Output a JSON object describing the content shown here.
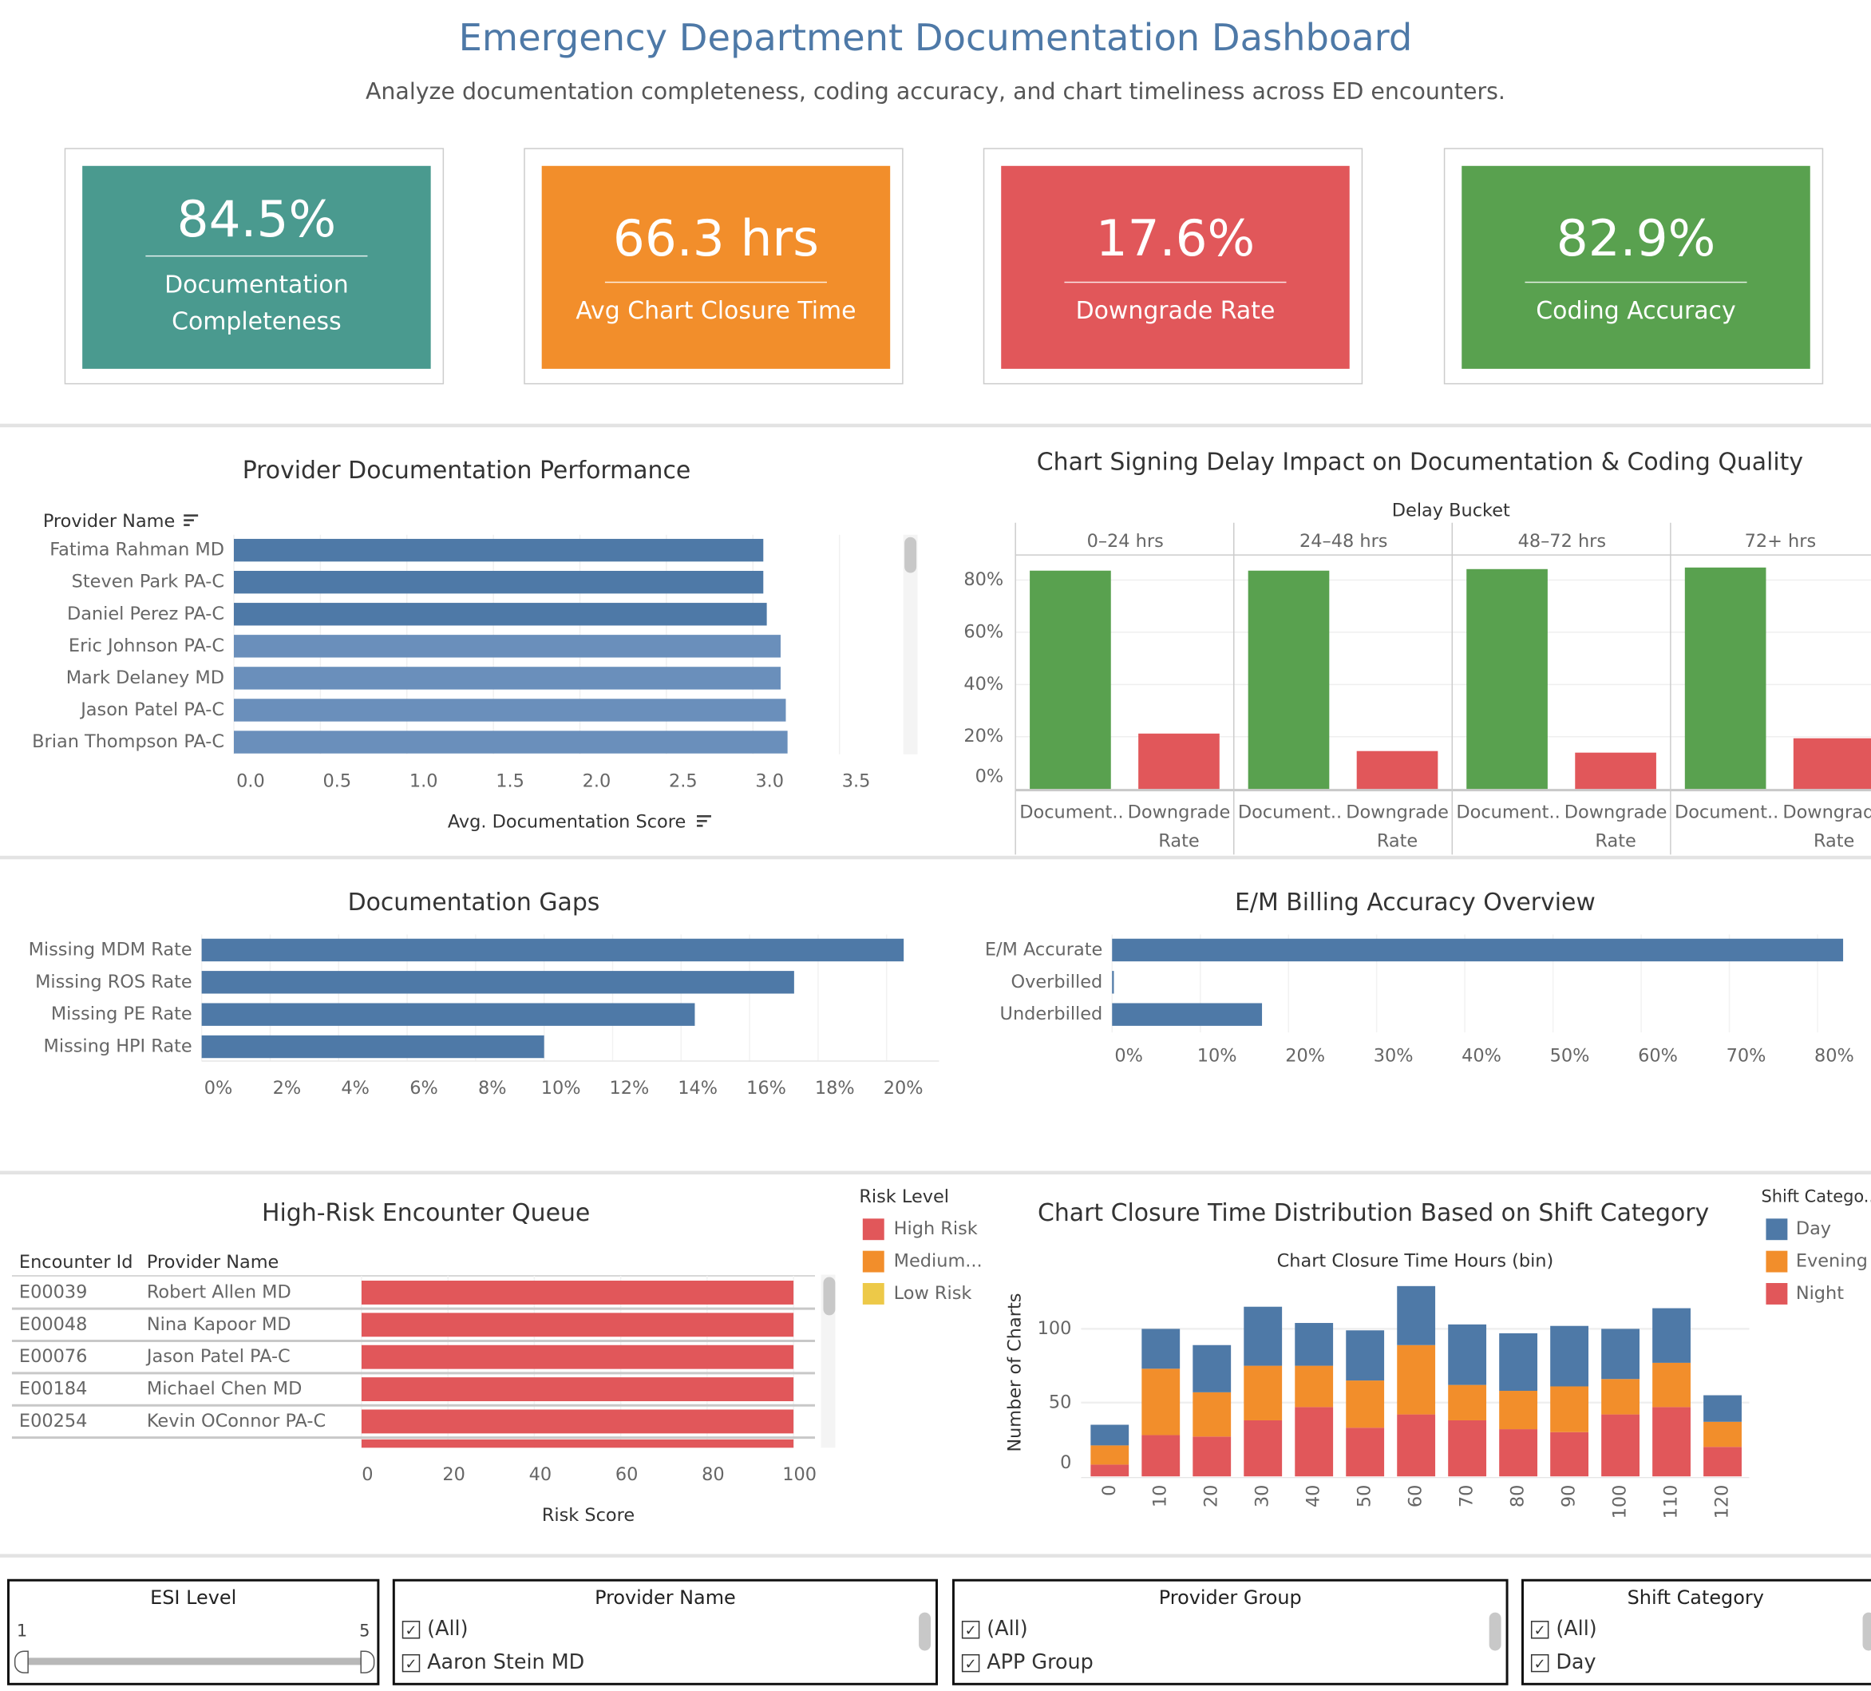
{
  "header": {
    "title": "Emergency Department Documentation Dashboard",
    "subtitle": "Analyze documentation completeness, coding accuracy, and chart timeliness across ED encounters."
  },
  "kpis": [
    {
      "value": "84.5%",
      "label": "Documentation Completeness",
      "color": "#4a9a8f"
    },
    {
      "value": "66.3 hrs",
      "label": "Avg Chart Closure Time",
      "color": "#f28e2b"
    },
    {
      "value": "17.6%",
      "label": "Downgrade Rate",
      "color": "#e1575a"
    },
    {
      "value": "82.9%",
      "label": "Coding Accuracy",
      "color": "#59a14f"
    }
  ],
  "colors": {
    "blue": "#4e79a7",
    "orange": "#f28e2b",
    "red": "#e1575a",
    "green": "#59a14f",
    "yellow": "#edc948"
  },
  "chart_data": [
    {
      "type": "bar",
      "orientation": "horizontal",
      "title": "Provider Documentation Performance",
      "row_header": "Provider Name",
      "xlabel": "Avg. Documentation Score",
      "categories": [
        "Fatima Rahman MD",
        "Steven Park PA-C",
        "Daniel Perez PA-C",
        "Eric Johnson PA-C",
        "Mark Delaney MD",
        "Jason Patel PA-C",
        "Brian Thompson PA-C"
      ],
      "values": [
        3.06,
        3.06,
        3.08,
        3.16,
        3.16,
        3.19,
        3.2
      ],
      "ticks": [
        "0.0",
        "0.5",
        "1.0",
        "1.5",
        "2.0",
        "2.5",
        "3.0",
        "3.5"
      ],
      "xlim": [
        0,
        3.5
      ]
    },
    {
      "type": "bar",
      "title": "Chart Signing Delay Impact on Documentation & Coding Quality",
      "column_header": "Delay Bucket",
      "panels": [
        "0–24 hrs",
        "24–48 hrs",
        "48–72 hrs",
        "72+ hrs"
      ],
      "measure_labels": [
        [
          "Document..",
          ""
        ],
        [
          "Downgrade",
          "Rate"
        ]
      ],
      "series": [
        {
          "measure": "Documentation Completeness",
          "values": [
            83.6,
            83.6,
            84.2,
            84.8
          ]
        },
        {
          "measure": "Downgrade Rate",
          "values": [
            21.2,
            14.5,
            13.9,
            19.4
          ]
        }
      ],
      "ticks": [
        "0%",
        "20%",
        "40%",
        "60%",
        "80%"
      ],
      "ylim": [
        0,
        80
      ]
    },
    {
      "type": "bar",
      "orientation": "horizontal",
      "title": "Documentation Gaps",
      "categories": [
        "Missing MDM Rate",
        "Missing ROS Rate",
        "Missing PE Rate",
        "Missing HPI Rate"
      ],
      "values": [
        20.5,
        17.3,
        14.4,
        10.0
      ],
      "ticks": [
        "0%",
        "2%",
        "4%",
        "6%",
        "8%",
        "10%",
        "12%",
        "14%",
        "16%",
        "18%",
        "20%"
      ],
      "xlim": [
        0,
        20
      ]
    },
    {
      "type": "bar",
      "orientation": "horizontal",
      "title": "E/M Billing Accuracy Overview",
      "categories": [
        "E/M Accurate",
        "Overbilled",
        "Underbilled"
      ],
      "values": [
        82.9,
        0.2,
        17.0
      ],
      "ticks": [
        "0%",
        "10%",
        "20%",
        "30%",
        "40%",
        "50%",
        "60%",
        "70%",
        "80%"
      ],
      "xlim": [
        0,
        80
      ]
    },
    {
      "type": "bar",
      "orientation": "horizontal",
      "title": "High-Risk Encounter Queue",
      "columns": [
        "Encounter Id",
        "Provider Name"
      ],
      "rows": [
        {
          "id": "E00039",
          "provider": "Robert Allen MD",
          "risk": 100,
          "level": "High Risk"
        },
        {
          "id": "E00048",
          "provider": "Nina Kapoor MD",
          "risk": 100,
          "level": "High Risk"
        },
        {
          "id": "E00076",
          "provider": "Jason Patel PA-C",
          "risk": 100,
          "level": "High Risk"
        },
        {
          "id": "E00184",
          "provider": "Michael Chen MD",
          "risk": 100,
          "level": "High Risk"
        },
        {
          "id": "E00254",
          "provider": "Kevin OConnor PA-C",
          "risk": 100,
          "level": "High Risk"
        }
      ],
      "xlabel": "Risk Score",
      "ticks": [
        "0",
        "20",
        "40",
        "60",
        "80",
        "100"
      ],
      "xlim": [
        0,
        100
      ],
      "legend": {
        "title": "Risk Level",
        "items": [
          {
            "label": "High Risk",
            "color": "#e1575a"
          },
          {
            "label": "Medium...",
            "color": "#f28e2b"
          },
          {
            "label": "Low Risk",
            "color": "#edc948"
          }
        ]
      }
    },
    {
      "type": "bar",
      "stacked": true,
      "title": "Chart Closure Time Distribution Based on Shift Category",
      "xlabel": "Chart Closure Time Hours (bin)",
      "ylabel": "Number of Charts",
      "categories": [
        "0",
        "10",
        "20",
        "30",
        "40",
        "50",
        "60",
        "70",
        "80",
        "90",
        "100",
        "110",
        "120"
      ],
      "series": [
        {
          "name": "Night",
          "color": "#e1575a",
          "values": [
            8,
            28,
            27,
            38,
            47,
            33,
            42,
            38,
            32,
            30,
            42,
            47,
            20
          ]
        },
        {
          "name": "Evening",
          "color": "#f28e2b",
          "values": [
            13,
            45,
            30,
            37,
            28,
            32,
            47,
            24,
            26,
            31,
            24,
            30,
            17
          ]
        },
        {
          "name": "Day",
          "color": "#4e79a7",
          "values": [
            14,
            27,
            32,
            40,
            29,
            34,
            40,
            41,
            39,
            41,
            34,
            37,
            18
          ]
        }
      ],
      "yticks": [
        "0",
        "50",
        "100"
      ],
      "ylim": [
        0,
        130
      ],
      "legend": {
        "title": "Shift Catego..",
        "items": [
          {
            "label": "Day",
            "color": "#4e79a7"
          },
          {
            "label": "Evening",
            "color": "#f28e2b"
          },
          {
            "label": "Night",
            "color": "#e1575a"
          }
        ]
      }
    }
  ],
  "filters": {
    "esi": {
      "title": "ESI Level",
      "min": "1",
      "max": "5"
    },
    "provider_name": {
      "title": "Provider Name",
      "items": [
        "(All)",
        "Aaron Stein MD"
      ]
    },
    "provider_group": {
      "title": "Provider Group",
      "items": [
        "(All)",
        "APP Group"
      ]
    },
    "shift_category": {
      "title": "Shift Category",
      "items": [
        "(All)",
        "Day"
      ]
    }
  }
}
